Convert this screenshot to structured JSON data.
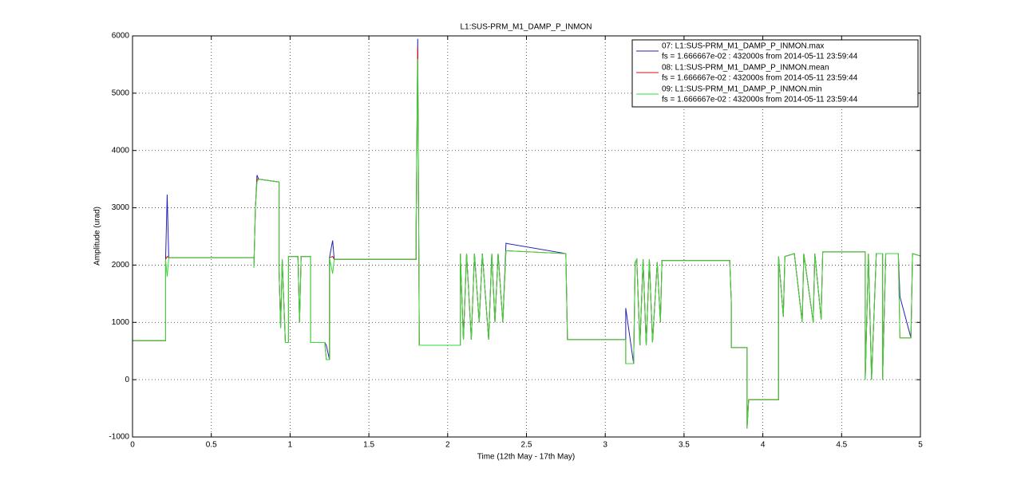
{
  "chart_data": {
    "type": "line",
    "title": "L1:SUS-PRM_M1_DAMP_P_INMON",
    "xlabel": "Time (12th May - 17th May)",
    "ylabel": "Amplitude (urad)",
    "xlim": [
      0,
      5
    ],
    "xticks": [
      0,
      0.5,
      1,
      1.5,
      2,
      2.5,
      3,
      3.5,
      4,
      4.5,
      5
    ],
    "ylim": [
      -1000,
      6000
    ],
    "yticks": [
      -1000,
      0,
      1000,
      2000,
      3000,
      4000,
      5000,
      6000
    ],
    "grid": true,
    "legend": "top-right",
    "x": [
      0,
      0.21,
      0.21,
      0.22,
      0.23,
      0.77,
      0.77,
      0.78,
      0.79,
      0.8,
      0.93,
      0.93,
      0.94,
      0.95,
      0.97,
      0.99,
      0.99,
      1.05,
      1.06,
      1.07,
      1.13,
      1.13,
      1.22,
      1.23,
      1.25,
      1.25,
      1.27,
      1.28,
      1.8,
      1.8,
      1.81,
      1.82,
      2.08,
      2.08,
      2.1,
      2.12,
      2.15,
      2.17,
      2.2,
      2.22,
      2.26,
      2.28,
      2.3,
      2.32,
      2.35,
      2.37,
      2.75,
      2.76,
      3.13,
      3.13,
      3.18,
      3.19,
      3.2,
      3.22,
      3.24,
      3.26,
      3.28,
      3.3,
      3.33,
      3.35,
      3.36,
      3.79,
      3.8,
      3.8,
      3.9,
      3.9,
      3.91,
      4.1,
      4.1,
      4.13,
      4.14,
      4.2,
      4.25,
      4.26,
      4.32,
      4.33,
      4.37,
      4.38,
      4.65,
      4.65,
      4.67,
      4.69,
      4.72,
      4.76,
      4.76,
      4.78,
      4.86,
      4.87,
      4.94,
      4.95,
      5
    ],
    "series": [
      {
        "name": "07: L1:SUS-PRM_M1_DAMP_P_INMON.max",
        "detail": "fs = 1.666667e-02 : 432000s from 2014-05-11 23:59:44",
        "color": "#2222bb",
        "values": [
          680,
          680,
          2100,
          3230,
          2130,
          2130,
          1950,
          3000,
          3570,
          3500,
          3450,
          1900,
          900,
          2100,
          650,
          650,
          2150,
          2150,
          1000,
          2150,
          2150,
          650,
          650,
          600,
          350,
          2130,
          2430,
          2100,
          2100,
          2700,
          5950,
          600,
          600,
          2200,
          700,
          2200,
          700,
          2200,
          1000,
          2200,
          700,
          2200,
          1000,
          2200,
          1000,
          2380,
          2200,
          700,
          700,
          1250,
          280,
          2050,
          2100,
          600,
          2100,
          600,
          2100,
          650,
          2050,
          1000,
          2080,
          2080,
          1350,
          560,
          560,
          -850,
          -350,
          -350,
          2150,
          1100,
          2150,
          2200,
          1000,
          2200,
          1000,
          2200,
          1050,
          2230,
          2230,
          0,
          2200,
          0,
          2200,
          2200,
          0,
          2200,
          2200,
          1450,
          730,
          2200,
          2160
        ]
      },
      {
        "name": "08: L1:SUS-PRM_M1_DAMP_P_INMON.mean",
        "detail": "fs = 1.666667e-02 : 432000s from 2014-05-11 23:59:44",
        "color": "#dd1111",
        "values": [
          680,
          680,
          2100,
          2150,
          2130,
          2130,
          1950,
          3000,
          3500,
          3500,
          3450,
          1900,
          900,
          2100,
          650,
          650,
          2150,
          2150,
          1000,
          2150,
          2150,
          650,
          650,
          350,
          350,
          2130,
          2150,
          2100,
          2100,
          2700,
          5800,
          600,
          600,
          2200,
          700,
          2200,
          700,
          2200,
          1000,
          2200,
          700,
          2200,
          1000,
          2200,
          1000,
          2250,
          2200,
          700,
          700,
          280,
          280,
          2050,
          2100,
          600,
          2100,
          600,
          2100,
          650,
          2050,
          1000,
          2080,
          2080,
          1350,
          560,
          560,
          -850,
          -350,
          -350,
          2150,
          1100,
          2150,
          2200,
          1000,
          2200,
          1000,
          2200,
          1050,
          2230,
          2230,
          0,
          2200,
          0,
          2200,
          2200,
          0,
          2200,
          2200,
          730,
          730,
          2200,
          2160
        ]
      },
      {
        "name": "09: L1:SUS-PRM_M1_DAMP_P_INMON.min",
        "detail": "fs = 1.666667e-02 : 432000s from 2014-05-11 23:59:44",
        "color": "#33dd33",
        "values": [
          680,
          680,
          2100,
          1800,
          2130,
          2130,
          1950,
          3000,
          3450,
          3500,
          3450,
          1900,
          900,
          2100,
          650,
          650,
          2150,
          2150,
          1000,
          2150,
          2150,
          650,
          650,
          350,
          350,
          2130,
          1850,
          2100,
          2100,
          2700,
          5600,
          600,
          600,
          2200,
          700,
          2200,
          700,
          2200,
          1000,
          2200,
          700,
          2200,
          1000,
          2200,
          1000,
          2250,
          2200,
          700,
          700,
          280,
          280,
          2050,
          2100,
          600,
          2100,
          600,
          2100,
          650,
          2050,
          1000,
          2080,
          2080,
          1350,
          560,
          560,
          -850,
          -350,
          -350,
          2150,
          1100,
          2150,
          2200,
          1000,
          2200,
          1000,
          2200,
          1050,
          2230,
          2230,
          0,
          2200,
          0,
          2200,
          2200,
          0,
          2200,
          2200,
          730,
          730,
          2200,
          2160
        ]
      }
    ]
  }
}
